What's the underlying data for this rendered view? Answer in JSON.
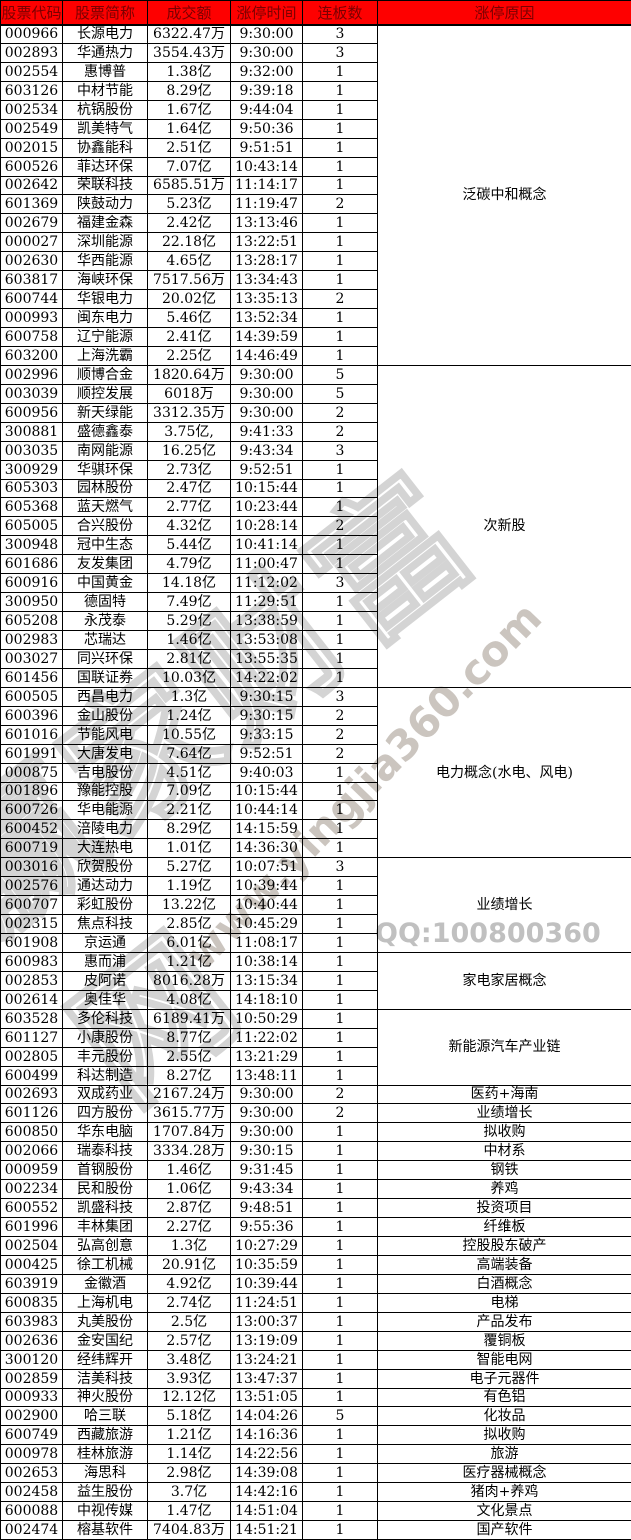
{
  "table": {
    "columns": [
      "股票代码",
      "股票简称",
      "成交额",
      "涨停时间",
      "连板数",
      "涨停原因"
    ],
    "groups": [
      {
        "reason": "泛碳中和概念",
        "rows": [
          [
            "000966",
            "长源电力",
            "6322.47万",
            "9:30:00",
            "3"
          ],
          [
            "002893",
            "华通热力",
            "3554.43万",
            "9:30:00",
            "3"
          ],
          [
            "002554",
            "惠博普",
            "1.38亿",
            "9:32:00",
            "1"
          ],
          [
            "603126",
            "中材节能",
            "8.29亿",
            "9:39:18",
            "1"
          ],
          [
            "002534",
            "杭锅股份",
            "1.67亿",
            "9:44:04",
            "1"
          ],
          [
            "002549",
            "凯美特气",
            "1.64亿",
            "9:50:36",
            "1"
          ],
          [
            "002015",
            "协鑫能科",
            "2.51亿",
            "9:51:51",
            "1"
          ],
          [
            "600526",
            "菲达环保",
            "7.07亿",
            "10:43:14",
            "1"
          ],
          [
            "002642",
            "荣联科技",
            "6585.51万",
            "11:14:17",
            "1"
          ],
          [
            "601369",
            "陕鼓动力",
            "5.23亿",
            "11:19:47",
            "2"
          ],
          [
            "002679",
            "福建金森",
            "2.42亿",
            "13:13:46",
            "1"
          ],
          [
            "000027",
            "深圳能源",
            "22.18亿",
            "13:22:51",
            "1"
          ],
          [
            "002630",
            "华西能源",
            "4.65亿",
            "13:28:17",
            "1"
          ],
          [
            "603817",
            "海峡环保",
            "7517.56万",
            "13:34:43",
            "1"
          ],
          [
            "600744",
            "华银电力",
            "20.02亿",
            "13:35:13",
            "2"
          ],
          [
            "000993",
            "闽东电力",
            "5.46亿",
            "13:52:34",
            "1"
          ],
          [
            "600758",
            "辽宁能源",
            "2.41亿",
            "14:39:59",
            "1"
          ],
          [
            "603200",
            "上海洗霸",
            "2.25亿",
            "14:46:49",
            "1"
          ]
        ]
      },
      {
        "reason": "次新股",
        "rows": [
          [
            "002996",
            "顺博合金",
            "1820.64万",
            "9:30:00",
            "5"
          ],
          [
            "003039",
            "顺控发展",
            "6018万",
            "9:30:00",
            "5"
          ],
          [
            "600956",
            "新天绿能",
            "3312.35万",
            "9:30:00",
            "2"
          ],
          [
            "300881",
            "盛德鑫泰",
            "3.75亿,",
            "9:41:33",
            "2"
          ],
          [
            "003035",
            "南网能源",
            "16.25亿",
            "9:43:34",
            "3"
          ],
          [
            "300929",
            "华骐环保",
            "2.73亿",
            "9:52:51",
            "1"
          ],
          [
            "605303",
            "园林股份",
            "2.47亿",
            "10:15:44",
            "1"
          ],
          [
            "605368",
            "蓝天燃气",
            "2.77亿",
            "10:23:44",
            "1"
          ],
          [
            "605005",
            "合兴股份",
            "4.32亿",
            "10:28:14",
            "2"
          ],
          [
            "300948",
            "冠中生态",
            "5.44亿",
            "10:41:14",
            "1"
          ],
          [
            "601686",
            "友发集团",
            "4.79亿",
            "11:00:47",
            "1"
          ],
          [
            "600916",
            "中国黄金",
            "14.18亿",
            "11:12:02",
            "3"
          ],
          [
            "300950",
            "德固特",
            "7.49亿",
            "11:29:51",
            "1"
          ],
          [
            "605208",
            "永茂泰",
            "5.29亿",
            "13:38:59",
            "1"
          ],
          [
            "002983",
            "芯瑞达",
            "1.46亿",
            "13:53:08",
            "1"
          ],
          [
            "003027",
            "同兴环保",
            "2.81亿",
            "13:55:35",
            "1"
          ],
          [
            "601456",
            "国联证券",
            "10.03亿",
            "14:22:02",
            "1"
          ]
        ]
      },
      {
        "reason": "电力概念(水电、风电)",
        "rows": [
          [
            "600505",
            "西昌电力",
            "1.3亿",
            "9:30:15",
            "3"
          ],
          [
            "600396",
            "金山股份",
            "1.24亿",
            "9:30:15",
            "2"
          ],
          [
            "601016",
            "节能风电",
            "10.55亿",
            "9:33:15",
            "2"
          ],
          [
            "601991",
            "大唐发电",
            "7.64亿",
            "9:52:51",
            "2"
          ],
          [
            "000875",
            "吉电股份",
            "4.51亿",
            "9:40:03",
            "1"
          ],
          [
            "001896",
            "豫能控股",
            "7.09亿",
            "10:15:44",
            "1"
          ],
          [
            "600726",
            "华电能源",
            "2.21亿",
            "10:44:14",
            "1"
          ],
          [
            "600452",
            "涪陵电力",
            "8.29亿",
            "14:15:59",
            "1"
          ],
          [
            "600719",
            "大连热电",
            "1.01亿",
            "14:36:30",
            "1"
          ]
        ]
      },
      {
        "reason": "业绩增长",
        "rows": [
          [
            "003016",
            "欣贺股份",
            "5.27亿",
            "10:07:51",
            "3"
          ],
          [
            "002576",
            "通达动力",
            "1.19亿",
            "10:39:44",
            "1"
          ],
          [
            "600707",
            "彩虹股份",
            "13.22亿",
            "10:40:44",
            "1"
          ],
          [
            "002315",
            "焦点科技",
            "2.85亿",
            "10:45:29",
            "1"
          ],
          [
            "601908",
            "京运通",
            "6.01亿",
            "11:08:17",
            "1"
          ]
        ]
      },
      {
        "reason": "家电家居概念",
        "rows": [
          [
            "600983",
            "惠而浦",
            "1.21亿",
            "10:38:14",
            "1"
          ],
          [
            "002853",
            "皮阿诺",
            "8016.28万",
            "13:15:34",
            "1"
          ],
          [
            "002614",
            "奥佳华",
            "4.08亿",
            "14:18:10",
            "1"
          ]
        ]
      },
      {
        "reason": "新能源汽车产业链",
        "rows": [
          [
            "603528",
            "多伦科技",
            "6189.41万",
            "10:50:29",
            "1"
          ],
          [
            "601127",
            "小康股份",
            "8.77亿",
            "11:22:02",
            "1"
          ],
          [
            "002805",
            "丰元股份",
            "2.55亿",
            "13:21:29",
            "1"
          ],
          [
            "600499",
            "科达制造",
            "8.27亿",
            "13:48:11",
            "1"
          ]
        ]
      },
      {
        "reason": "医药+海南",
        "rows": [
          [
            "002693",
            "双成药业",
            "2167.24万",
            "9:30:00",
            "2"
          ]
        ]
      },
      {
        "reason": "业绩增长",
        "rows": [
          [
            "601126",
            "四方股份",
            "3615.77万",
            "9:30:00",
            "2"
          ]
        ]
      },
      {
        "reason": "拟收购",
        "rows": [
          [
            "600850",
            "华东电脑",
            "1707.84万",
            "9:30:00",
            "1"
          ]
        ]
      },
      {
        "reason": "中材系",
        "rows": [
          [
            "002066",
            "瑞泰科技",
            "3334.28万",
            "9:30:15",
            "1"
          ]
        ]
      },
      {
        "reason": "钢铁",
        "rows": [
          [
            "000959",
            "首钢股份",
            "1.46亿",
            "9:31:45",
            "1"
          ]
        ]
      },
      {
        "reason": "养鸡",
        "rows": [
          [
            "002234",
            "民和股份",
            "1.06亿",
            "9:43:34",
            "1"
          ]
        ]
      },
      {
        "reason": "投资项目",
        "rows": [
          [
            "600552",
            "凯盛科技",
            "2.87亿",
            "9:48:51",
            "1"
          ]
        ]
      },
      {
        "reason": "纤维板",
        "rows": [
          [
            "601996",
            "丰林集团",
            "2.27亿",
            "9:55:36",
            "1"
          ]
        ]
      },
      {
        "reason": "控股股东破产",
        "rows": [
          [
            "002504",
            "弘高创意",
            "1.3亿",
            "10:27:29",
            "1"
          ]
        ]
      },
      {
        "reason": "高端装备",
        "rows": [
          [
            "000425",
            "徐工机械",
            "20.91亿",
            "10:35:59",
            "1"
          ]
        ]
      },
      {
        "reason": "白酒概念",
        "rows": [
          [
            "603919",
            "金徽酒",
            "4.92亿",
            "10:39:44",
            "1"
          ]
        ]
      },
      {
        "reason": "电梯",
        "rows": [
          [
            "600835",
            "上海机电",
            "2.74亿",
            "11:24:51",
            "1"
          ]
        ]
      },
      {
        "reason": "产品发布",
        "rows": [
          [
            "603983",
            "丸美股份",
            "2.5亿",
            "13:00:37",
            "1"
          ]
        ]
      },
      {
        "reason": "覆铜板",
        "rows": [
          [
            "002636",
            "金安国纪",
            "2.57亿",
            "13:19:09",
            "1"
          ]
        ]
      },
      {
        "reason": "智能电网",
        "rows": [
          [
            "300120",
            "经纬辉开",
            "3.48亿",
            "13:24:21",
            "1"
          ]
        ]
      },
      {
        "reason": "电子元器件",
        "rows": [
          [
            "002859",
            "洁美科技",
            "3.93亿",
            "13:47:37",
            "1"
          ]
        ]
      },
      {
        "reason": "有色铝",
        "rows": [
          [
            "000933",
            "神火股份",
            "12.12亿",
            "13:51:05",
            "1"
          ]
        ]
      },
      {
        "reason": "化妆品",
        "rows": [
          [
            "002900",
            "哈三联",
            "5.18亿",
            "14:04:26",
            "5"
          ]
        ]
      },
      {
        "reason": "拟收购",
        "rows": [
          [
            "600749",
            "西藏旅游",
            "1.21亿",
            "14:16:36",
            "1"
          ]
        ]
      },
      {
        "reason": "旅游",
        "rows": [
          [
            "000978",
            "桂林旅游",
            "1.14亿",
            "14:22:56",
            "1"
          ]
        ]
      },
      {
        "reason": "医疗器械概念",
        "rows": [
          [
            "002653",
            "海思科",
            "2.98亿",
            "14:39:08",
            "1"
          ]
        ]
      },
      {
        "reason": "猪肉+养鸡",
        "rows": [
          [
            "002458",
            "益生股份",
            "3.7亿",
            "14:42:16",
            "1"
          ]
        ]
      },
      {
        "reason": "文化景点",
        "rows": [
          [
            "600088",
            "中视传媒",
            "1.47亿",
            "14:51:04",
            "1"
          ]
        ]
      },
      {
        "reason": "国产软件",
        "rows": [
          [
            "002474",
            "榕基软件",
            "7404.83万",
            "14:51:21",
            "1"
          ]
        ]
      }
    ]
  },
  "watermark": {
    "brand": "赢家财富网",
    "url": "www.yingjia360.com",
    "qq": "QQ:100800360"
  },
  "colors": {
    "header_bg": "#FE0000",
    "header_text": "#7A0000",
    "grid": "#000000",
    "watermark_gray": "#C4BDB5"
  }
}
